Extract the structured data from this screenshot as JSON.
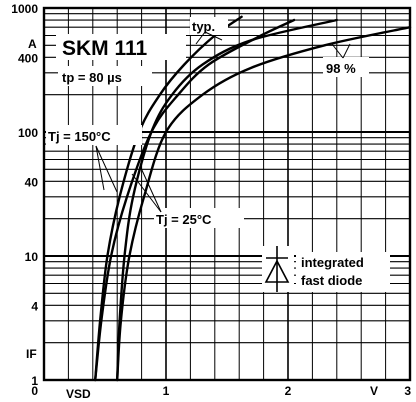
{
  "chart_data": {
    "type": "line",
    "title": "SKM 111",
    "xlabel": "VSD",
    "xunit": "V",
    "ylabel": "IF",
    "yunit": "A",
    "xscale": "linear",
    "yscale": "log",
    "xlim": [
      0,
      3
    ],
    "ylim": [
      1,
      1000
    ],
    "grid": true,
    "x_ticks": [
      {
        "value": 0,
        "label": "0"
      },
      {
        "value": 1,
        "label": "1"
      },
      {
        "value": 2,
        "label": "2"
      },
      {
        "value": 3,
        "label": "3"
      }
    ],
    "y_ticks": [
      {
        "value": 1000,
        "label": "1000"
      },
      {
        "value": 400,
        "label": "400"
      },
      {
        "value": 100,
        "label": "100"
      },
      {
        "value": 40,
        "label": "40"
      },
      {
        "value": 10,
        "label": "10"
      },
      {
        "value": 4,
        "label": "4"
      },
      {
        "value": 1,
        "label": "1"
      }
    ],
    "annotations": {
      "pulse": "tp = 80 µs",
      "typical": "typ.",
      "percent": "98 %",
      "tj_high": "Tj = 150°C",
      "tj_low": "Tj = 25°C",
      "diode_line1": "integrated",
      "diode_line2": "fast diode"
    },
    "series": [
      {
        "points": [
          [
            0.42,
            1
          ],
          [
            0.46,
            3
          ],
          [
            0.52,
            10
          ],
          [
            0.62,
            30
          ],
          [
            0.78,
            100
          ],
          [
            0.95,
            200
          ],
          [
            1.15,
            350
          ],
          [
            1.4,
            600
          ],
          [
            1.62,
            850
          ]
        ]
      },
      {
        "points": [
          [
            0.42,
            1
          ],
          [
            0.47,
            3
          ],
          [
            0.55,
            10
          ],
          [
            0.68,
            30
          ],
          [
            0.88,
            100
          ],
          [
            1.1,
            200
          ],
          [
            1.35,
            350
          ],
          [
            1.75,
            580
          ],
          [
            2.05,
            800
          ]
        ]
      },
      {
        "points": [
          [
            0.6,
            1
          ],
          [
            0.62,
            3
          ],
          [
            0.66,
            10
          ],
          [
            0.73,
            30
          ],
          [
            0.88,
            100
          ],
          [
            1.05,
            200
          ],
          [
            1.3,
            350
          ],
          [
            1.7,
            550
          ],
          [
            2.4,
            800
          ]
        ]
      },
      {
        "points": [
          [
            0.6,
            1
          ],
          [
            0.63,
            3
          ],
          [
            0.7,
            10
          ],
          [
            0.82,
            30
          ],
          [
            1.0,
            100
          ],
          [
            1.3,
            200
          ],
          [
            1.7,
            330
          ],
          [
            2.3,
            500
          ],
          [
            3.0,
            700
          ]
        ]
      }
    ]
  }
}
